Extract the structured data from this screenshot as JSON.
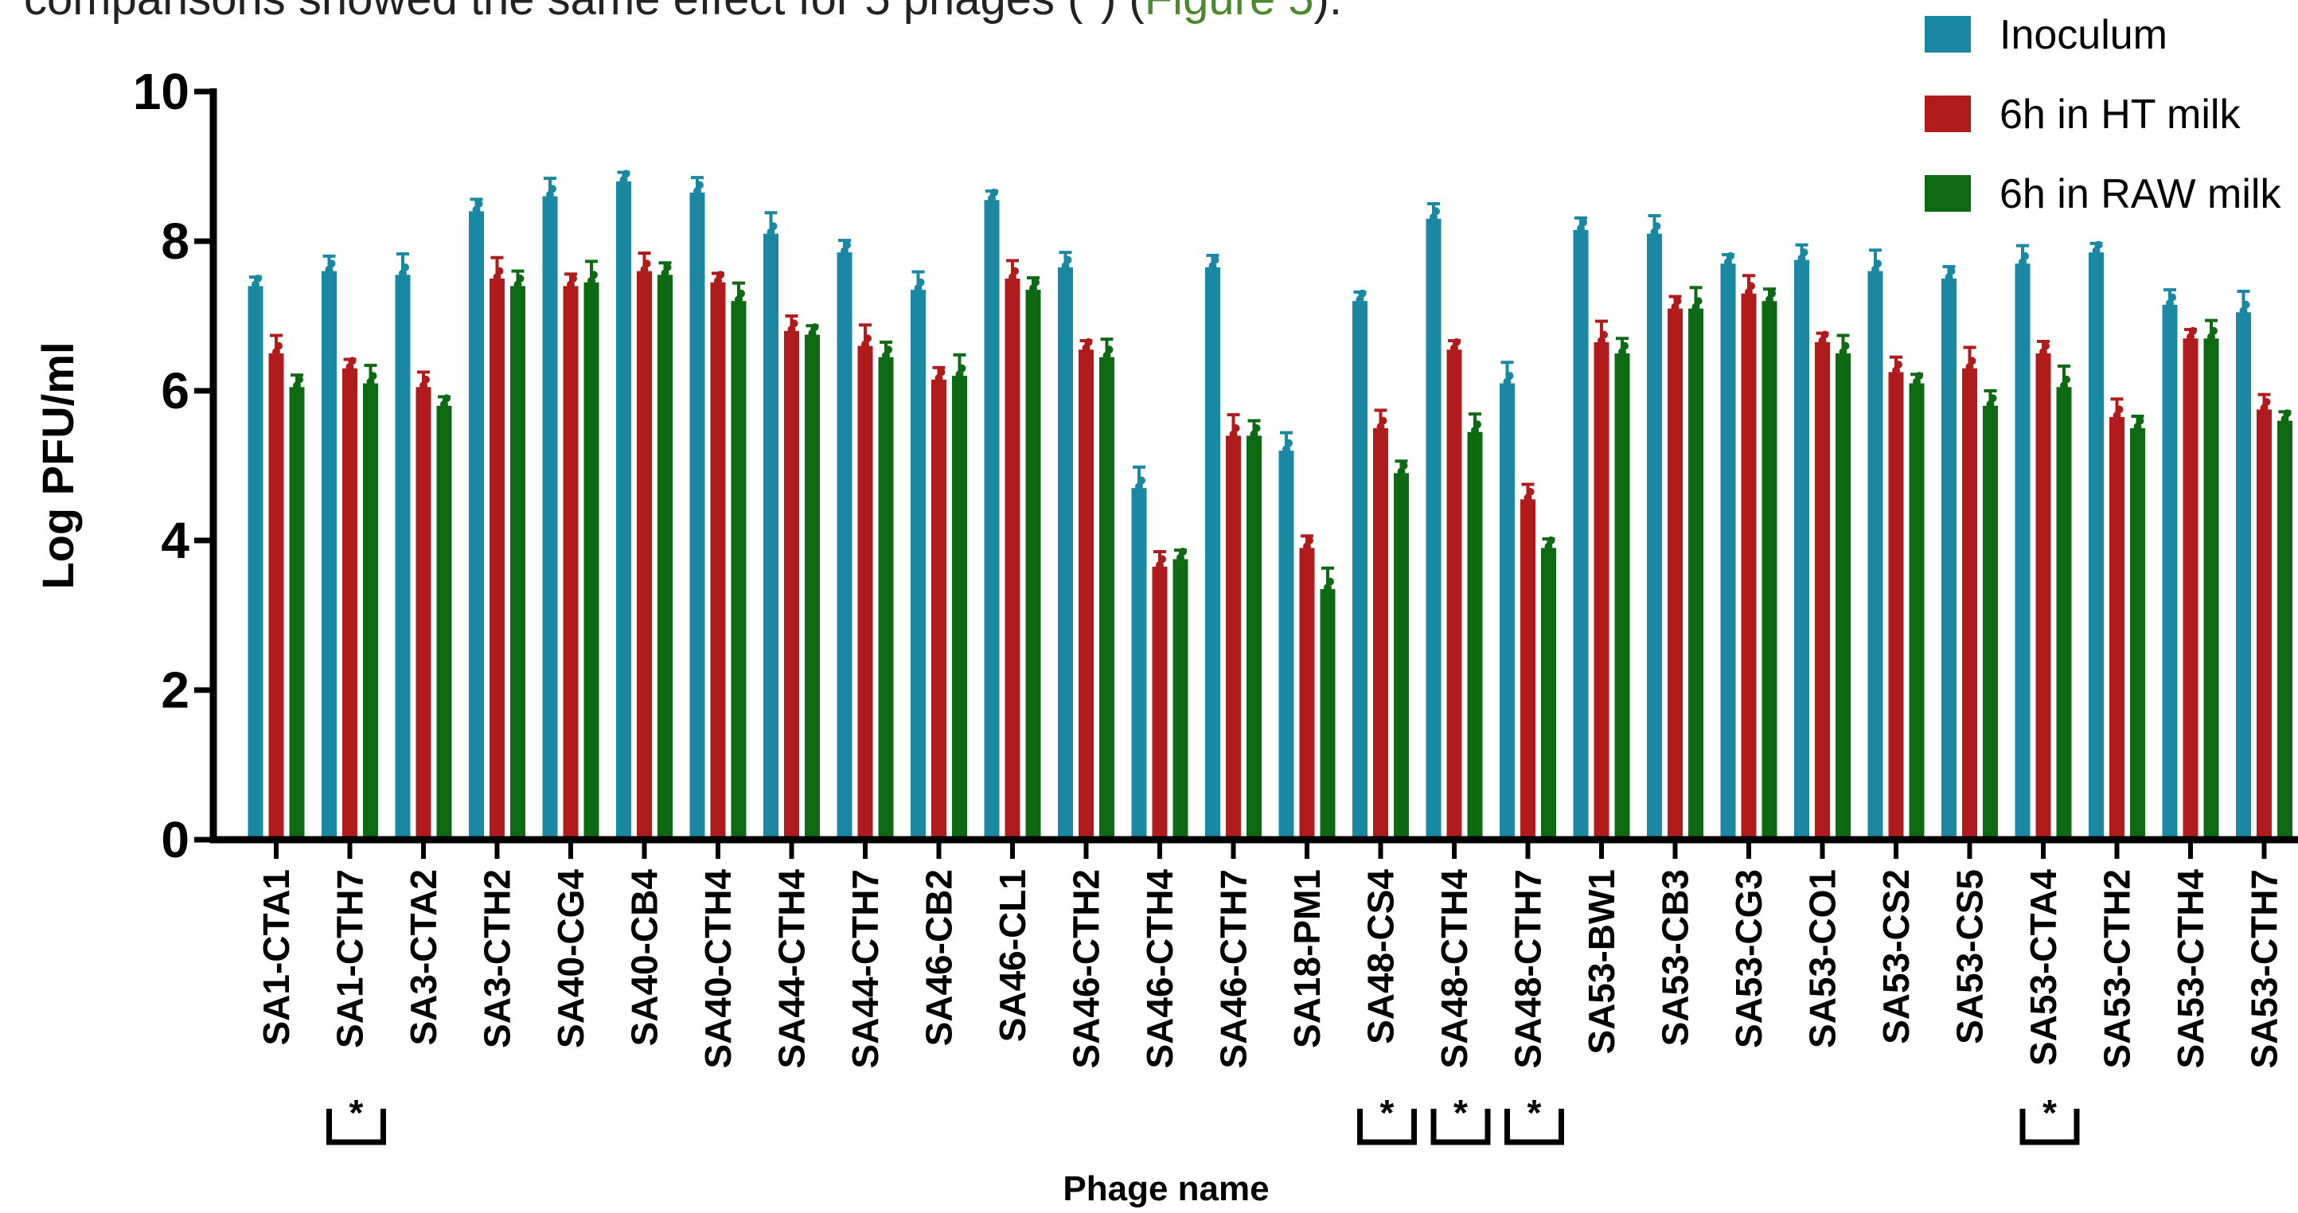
{
  "caption": {
    "text_before": "comparisons showed the same effect for 5 phages (*) (",
    "link_text": "Figure 5",
    "text_after": ")."
  },
  "colors": {
    "inoculum": "#1a87a3",
    "ht_milk": "#b01c1c",
    "raw_milk": "#0e6a12"
  },
  "chart_data": {
    "type": "bar",
    "xlabel": "Phage name",
    "ylabel": "Log PFU/ml",
    "ylim": [
      0,
      10
    ],
    "yticks": [
      0,
      2,
      4,
      6,
      8,
      10
    ],
    "legend_position": "top-right",
    "error_bars": true,
    "categories": [
      "SA1-CTA1",
      "SA1-CTH7",
      "SA3-CTA2",
      "SA3-CTH2",
      "SA40-CG4",
      "SA40-CB4",
      "SA40-CTH4",
      "SA44-CTH4",
      "SA44-CTH7",
      "SA46-CB2",
      "SA46-CL1",
      "SA46-CTH2",
      "SA46-CTH4",
      "SA46-CTH7",
      "SA18-PM1",
      "SA48-CS4",
      "SA48-CTH4",
      "SA48-CTH7",
      "SA53-BW1",
      "SA53-CB3",
      "SA53-CG3",
      "SA53-CO1",
      "SA53-CS2",
      "SA53-CS5",
      "SA53-CTA4",
      "SA53-CTH2",
      "SA53-CTH4",
      "SA53-CTH7"
    ],
    "series": [
      {
        "name": "Inoculum",
        "values": [
          7.4,
          7.6,
          7.55,
          8.4,
          8.6,
          8.8,
          8.65,
          8.1,
          7.85,
          7.35,
          8.55,
          7.65,
          4.7,
          7.65,
          5.2,
          7.2,
          8.3,
          6.1,
          8.15,
          8.1,
          7.7,
          7.75,
          7.6,
          7.5,
          7.7,
          7.85,
          7.15,
          7.05
        ]
      },
      {
        "name": "6h in HT milk",
        "values": [
          6.5,
          6.3,
          6.05,
          7.5,
          7.4,
          7.6,
          7.45,
          6.8,
          6.6,
          6.15,
          7.5,
          6.55,
          3.65,
          5.4,
          3.9,
          5.5,
          6.55,
          4.55,
          6.65,
          7.1,
          7.3,
          6.65,
          6.25,
          6.3,
          6.5,
          5.65,
          6.7,
          5.75
        ]
      },
      {
        "name": "6h in RAW milk",
        "values": [
          6.05,
          6.1,
          5.8,
          7.4,
          7.45,
          7.55,
          7.2,
          6.75,
          6.45,
          6.2,
          7.35,
          6.45,
          3.75,
          5.4,
          3.35,
          4.9,
          5.45,
          3.9,
          6.5,
          7.1,
          7.2,
          6.5,
          6.1,
          5.8,
          6.05,
          5.5,
          6.7,
          5.6
        ]
      }
    ],
    "significance_marker": "*",
    "significant_categories": [
      "SA1-CTH7",
      "SA48-CS4",
      "SA48-CTH4",
      "SA48-CTH7",
      "SA53-CTA4"
    ]
  }
}
